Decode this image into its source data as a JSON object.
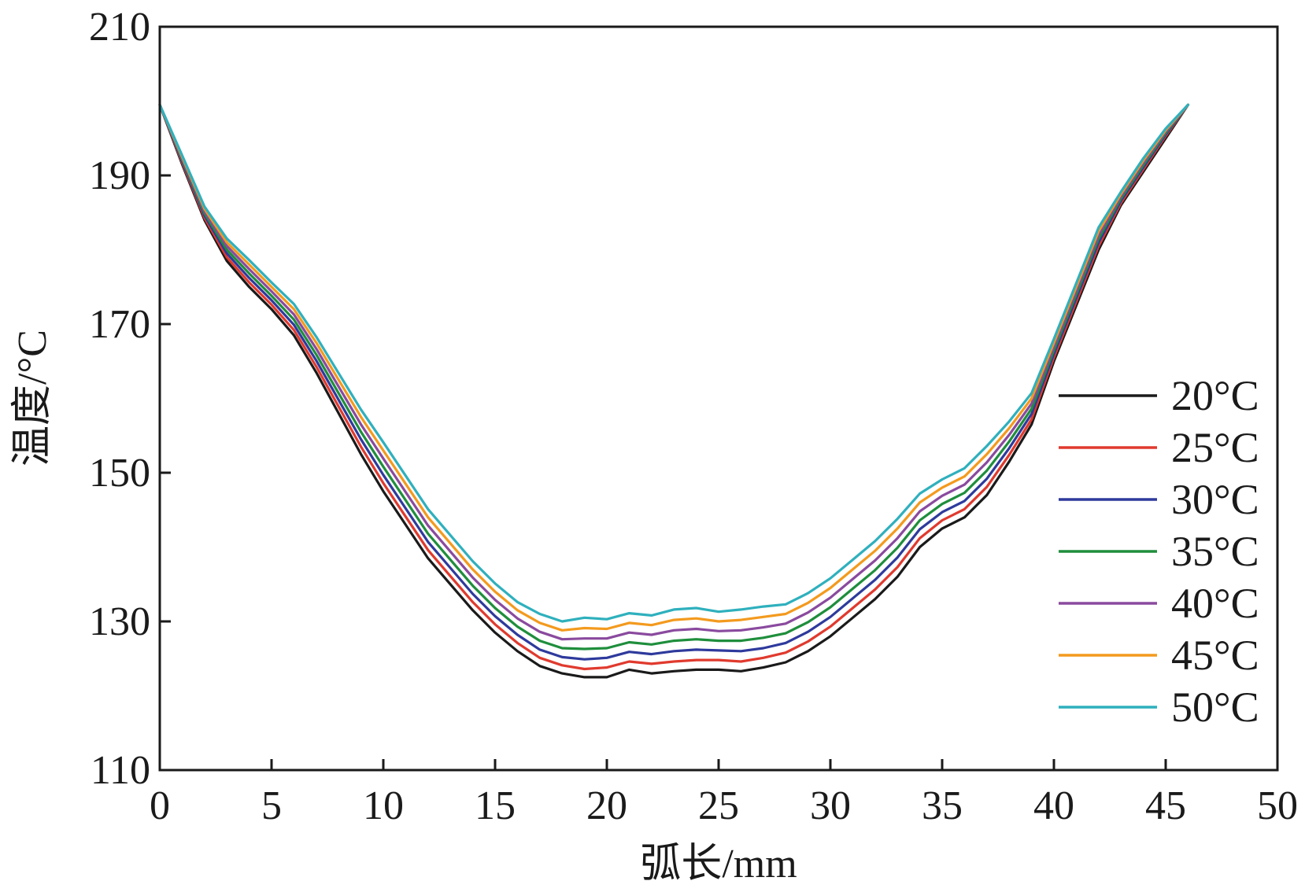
{
  "chart_data": {
    "type": "line",
    "title": "",
    "xlabel": "弧长/mm",
    "ylabel": "温度/°C",
    "xlim": [
      0,
      50
    ],
    "ylim": [
      110,
      210
    ],
    "xticks": [
      0,
      5,
      10,
      15,
      20,
      25,
      30,
      35,
      40,
      45,
      50
    ],
    "yticks": [
      110,
      130,
      150,
      170,
      190,
      210
    ],
    "grid": false,
    "legend_position": "right",
    "x": [
      0,
      1,
      2,
      3,
      4,
      5,
      6,
      7,
      8,
      9,
      10,
      11,
      12,
      13,
      14,
      15,
      16,
      17,
      18,
      19,
      20,
      21,
      22,
      23,
      24,
      25,
      26,
      27,
      28,
      29,
      30,
      31,
      32,
      33,
      34,
      35,
      36,
      37,
      38,
      39,
      40,
      41,
      42,
      43,
      44,
      45,
      46
    ],
    "series": [
      {
        "name": "20°C",
        "color": "#1a1a1a",
        "values": [
          199.5,
          191.5,
          184,
          178.5,
          175,
          172,
          168.5,
          163.5,
          158,
          152.5,
          147.5,
          143,
          138.5,
          135,
          131.5,
          128.5,
          126,
          124,
          123,
          122.5,
          122.5,
          123.5,
          123,
          123.3,
          123.5,
          123.5,
          123.3,
          123.8,
          124.5,
          126,
          128,
          130.5,
          133,
          136,
          140,
          142.5,
          144,
          147,
          151.5,
          156.5,
          165,
          172.5,
          180,
          186,
          190.5,
          195,
          199.5
        ]
      },
      {
        "name": "25°C",
        "color": "#e03a2e",
        "values": [
          199.5,
          191.7,
          184.3,
          179,
          175.6,
          172.6,
          169.2,
          164.3,
          158.9,
          153.5,
          148.6,
          144.1,
          139.6,
          136.1,
          132.6,
          129.6,
          127.1,
          125.1,
          124.1,
          123.6,
          123.8,
          124.6,
          124.3,
          124.6,
          124.8,
          124.8,
          124.6,
          125.1,
          125.8,
          127.3,
          129.3,
          131.8,
          134.3,
          137.3,
          141.2,
          143.6,
          145.1,
          148.1,
          152.4,
          157.2,
          165.5,
          173,
          180.5,
          186.3,
          190.8,
          195.3,
          199.5
        ]
      },
      {
        "name": "30°C",
        "color": "#2e3a9c",
        "values": [
          199.5,
          191.9,
          184.6,
          179.5,
          176.2,
          173.2,
          169.9,
          165.1,
          159.8,
          154.5,
          149.7,
          145.2,
          140.7,
          137.2,
          133.7,
          130.7,
          128.2,
          126.2,
          125.2,
          124.9,
          125.1,
          125.9,
          125.6,
          126,
          126.2,
          126.1,
          126,
          126.4,
          127.1,
          128.6,
          130.6,
          133.1,
          135.6,
          138.6,
          142.4,
          144.7,
          146.2,
          149.2,
          153.3,
          157.9,
          166,
          173.5,
          181,
          186.6,
          191.1,
          195.5,
          199.5
        ]
      },
      {
        "name": "35°C",
        "color": "#1f8e3c",
        "values": [
          199.5,
          192.1,
          184.9,
          180,
          176.8,
          173.8,
          170.6,
          165.9,
          160.7,
          155.5,
          150.8,
          146.3,
          141.8,
          138.3,
          134.8,
          131.8,
          129.3,
          127.4,
          126.4,
          126.3,
          126.4,
          127.2,
          126.9,
          127.4,
          127.6,
          127.4,
          127.4,
          127.8,
          128.4,
          129.9,
          131.9,
          134.4,
          136.9,
          139.9,
          143.6,
          145.8,
          147.3,
          150.3,
          154.2,
          158.6,
          166.5,
          174,
          181.5,
          186.9,
          191.4,
          195.7,
          199.5
        ]
      },
      {
        "name": "40°C",
        "color": "#8a4a9e",
        "values": [
          199.5,
          192.3,
          185.2,
          180.5,
          177.4,
          174.4,
          171.3,
          166.7,
          161.6,
          156.5,
          151.9,
          147.4,
          142.9,
          139.4,
          135.9,
          132.9,
          130.4,
          128.6,
          127.6,
          127.7,
          127.7,
          128.5,
          128.2,
          128.8,
          129,
          128.7,
          128.8,
          129.2,
          129.7,
          131.2,
          133.2,
          135.7,
          138.2,
          141.2,
          144.8,
          146.9,
          148.4,
          151.4,
          155.1,
          159.3,
          167,
          174.5,
          182,
          187.2,
          191.7,
          195.9,
          199.5
        ]
      },
      {
        "name": "45°C",
        "color": "#f39a1e",
        "values": [
          199.5,
          192.5,
          185.5,
          181,
          178,
          175,
          172,
          167.5,
          162.5,
          157.5,
          153,
          148.5,
          144,
          140.5,
          137,
          134,
          131.5,
          129.8,
          128.8,
          129.1,
          129,
          129.8,
          129.5,
          130.2,
          130.4,
          130,
          130.2,
          130.6,
          131,
          132.5,
          134.5,
          137,
          139.5,
          142.5,
          146,
          148,
          149.5,
          152.5,
          156,
          160,
          167.5,
          175,
          182.5,
          187.5,
          192,
          196.1,
          199.5
        ]
      },
      {
        "name": "50°C",
        "color": "#2fb0bd",
        "values": [
          199.5,
          192.7,
          185.8,
          181.5,
          178.6,
          175.6,
          172.7,
          168.3,
          163.4,
          158.5,
          154.1,
          149.6,
          145.1,
          141.6,
          138.1,
          135.1,
          132.6,
          131,
          130,
          130.5,
          130.3,
          131.1,
          130.8,
          131.6,
          131.8,
          131.3,
          131.6,
          132,
          132.3,
          133.8,
          135.8,
          138.3,
          140.8,
          143.8,
          147.2,
          149.1,
          150.6,
          153.6,
          156.9,
          160.7,
          168,
          175.5,
          183,
          187.8,
          192.3,
          196.3,
          199.5
        ]
      }
    ]
  }
}
